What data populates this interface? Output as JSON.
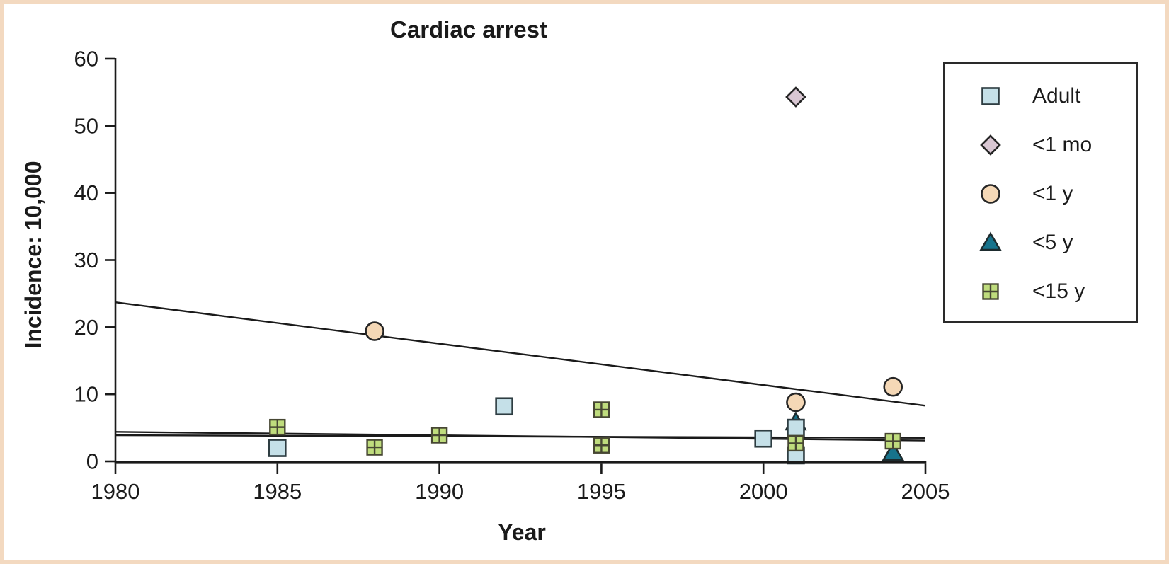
{
  "figure": {
    "frame_color": "#f3d9c0",
    "background": "#ffffff",
    "text_color": "#1a1a1a",
    "axis_color": "#1a1a1a"
  },
  "legend": {
    "items": [
      {
        "series": "Adult",
        "label": "Adult",
        "marker": "square",
        "fill": "#c5e0e8",
        "stroke": "#2e3d42"
      },
      {
        "series": "<1 mo",
        "label": "<1 mo",
        "marker": "diamond",
        "fill": "#d9c7d3",
        "stroke": "#262626"
      },
      {
        "series": "<1 y",
        "label": "<1 y",
        "marker": "circle",
        "fill": "#f5d8b6",
        "stroke": "#262626"
      },
      {
        "series": "<5 y",
        "label": "<5 y",
        "marker": "triangle",
        "fill": "#17738c",
        "stroke": "#1d2b2e"
      },
      {
        "series": "<15 y",
        "label": "<15 y",
        "marker": "cross-square",
        "fill": "#bfdc7d",
        "stroke": "#474733"
      }
    ]
  },
  "chart_data": {
    "type": "scatter",
    "title": "Cardiac arrest",
    "xlabel": "Year",
    "ylabel": "Incidence: 10,000",
    "xlim": [
      1980,
      2005
    ],
    "ylim": [
      0,
      60
    ],
    "xticks": [
      1980,
      1985,
      1990,
      1995,
      2000,
      2005
    ],
    "yticks": [
      0,
      10,
      20,
      30,
      40,
      50,
      60
    ],
    "grid": false,
    "legend_position": "upper right",
    "series": [
      {
        "name": "Adult",
        "marker": "square",
        "fill": "#c5e0e8",
        "stroke": "#2e3d42",
        "points": [
          [
            1985,
            2.0
          ],
          [
            1992,
            8.2
          ],
          [
            2000,
            3.4
          ],
          [
            2001,
            5.0
          ],
          [
            2001,
            0.9
          ]
        ]
      },
      {
        "name": "<1 mo",
        "marker": "diamond",
        "fill": "#d9c7d3",
        "stroke": "#262626",
        "points": [
          [
            2001,
            54.3
          ]
        ]
      },
      {
        "name": "<1 y",
        "marker": "circle",
        "fill": "#f5d8b6",
        "stroke": "#262626",
        "points": [
          [
            1988,
            19.4
          ],
          [
            2001,
            8.8
          ],
          [
            2004,
            11.1
          ]
        ]
      },
      {
        "name": "<5 y",
        "marker": "triangle",
        "fill": "#17738c",
        "stroke": "#1d2b2e",
        "points": [
          [
            2001,
            5.8
          ],
          [
            2004,
            1.3
          ]
        ]
      },
      {
        "name": "<15 y",
        "marker": "cross-square",
        "fill": "#bfdc7d",
        "stroke": "#474733",
        "points": [
          [
            1985,
            5.1
          ],
          [
            1988,
            2.1
          ],
          [
            1990,
            3.9
          ],
          [
            1995,
            7.7
          ],
          [
            1995,
            2.4
          ],
          [
            2001,
            2.7
          ],
          [
            2004,
            3.0
          ]
        ]
      }
    ],
    "trend_lines": [
      {
        "series": "<1 y",
        "from": [
          1980,
          23.7
        ],
        "to": [
          2005,
          8.3
        ]
      },
      {
        "series": "Adult",
        "from": [
          1980,
          4.4
        ],
        "to": [
          2005,
          3.1
        ]
      },
      {
        "series": "<15 y",
        "from": [
          1980,
          3.9
        ],
        "to": [
          2005,
          3.5
        ]
      }
    ]
  }
}
